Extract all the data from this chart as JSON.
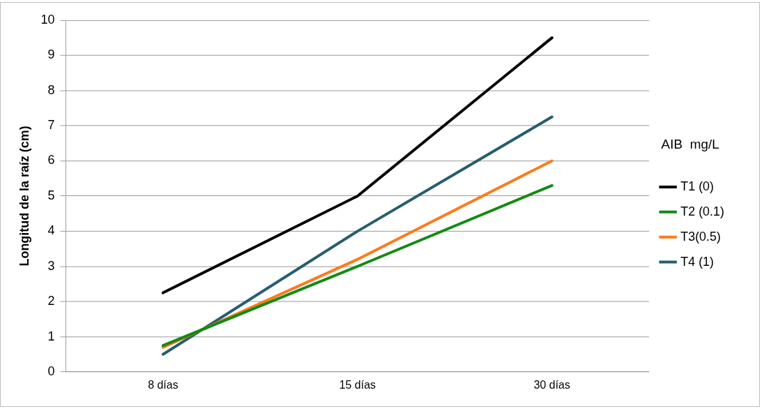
{
  "chart_data": {
    "type": "line",
    "ylabel": "Longitud de la raíz (cm)",
    "legend_title": "AIB  mg/L",
    "categories": [
      "8 días",
      "15 días",
      "30 días"
    ],
    "series": [
      {
        "name": "T1 (0)",
        "color": "#000000",
        "values": [
          2.25,
          5.0,
          9.5
        ]
      },
      {
        "name": "T2 (0.1)",
        "color": "#138a13",
        "values": [
          0.75,
          3.0,
          5.3
        ]
      },
      {
        "name": "T3(0.5)",
        "color": "#ff7a1a",
        "values": [
          0.7,
          3.2,
          6.0
        ]
      },
      {
        "name": "T4 (1)",
        "color": "#255e6e",
        "values": [
          0.5,
          4.0,
          7.25
        ]
      }
    ],
    "ylim": [
      0,
      10
    ],
    "yticks": [
      0,
      1,
      2,
      3,
      4,
      5,
      6,
      7,
      8,
      9,
      10
    ],
    "grid": "y",
    "legend": "right",
    "marker": "none",
    "line_style": "solid"
  }
}
